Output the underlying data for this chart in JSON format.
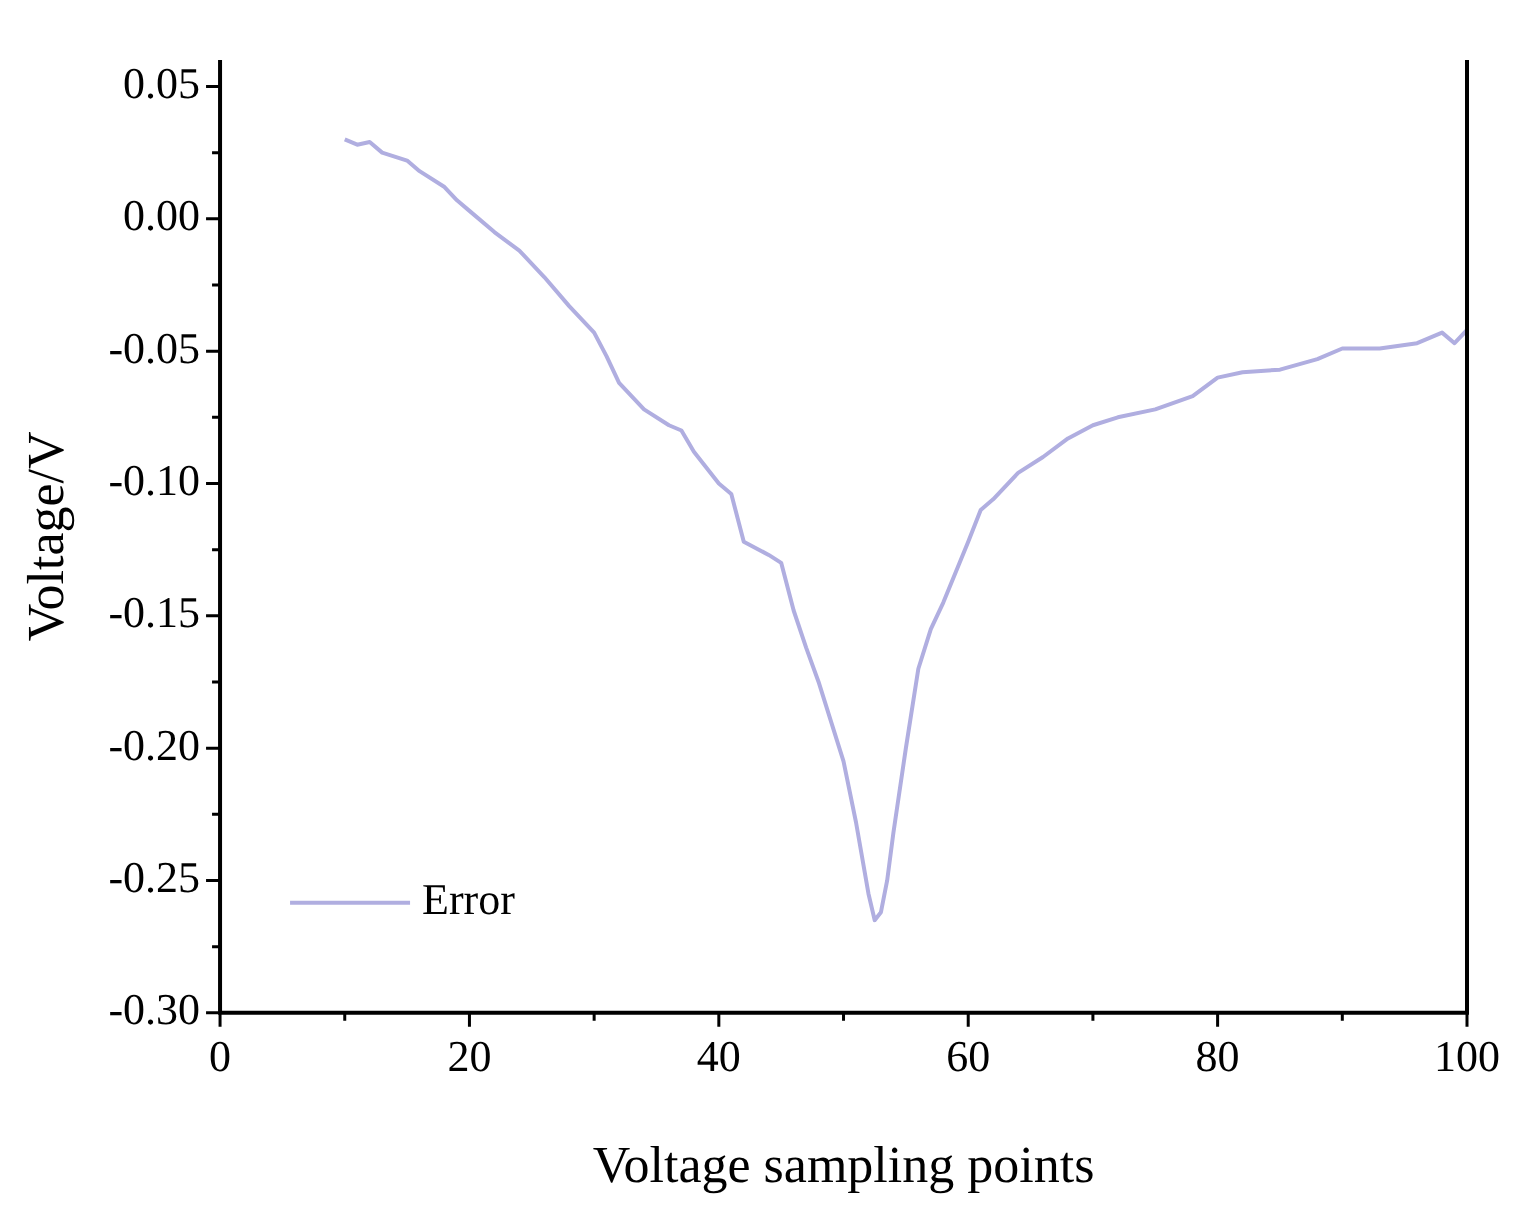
{
  "chart_data": {
    "type": "line",
    "xlabel": "Voltage sampling points",
    "ylabel": "Voltage/V",
    "xlim": [
      0,
      100
    ],
    "xticks": [
      0,
      20,
      40,
      60,
      80,
      100
    ],
    "ylim": [
      -0.3,
      0.06
    ],
    "yticks": [
      {
        "value": -0.3,
        "label": "-0.30"
      },
      {
        "value": -0.25,
        "label": "-0.25"
      },
      {
        "value": -0.2,
        "label": "-0.20"
      },
      {
        "value": -0.15,
        "label": "-0.15"
      },
      {
        "value": -0.1,
        "label": "-0.10"
      },
      {
        "value": -0.05,
        "label": "-0.05"
      },
      {
        "value": 0,
        "label": "0.00"
      },
      {
        "value": 0.05,
        "label": "0.05"
      }
    ],
    "grid": false,
    "legend": "bottom left",
    "marker": "none",
    "line_style": "solid",
    "series": [
      {
        "name": "Error",
        "color": "#b0aee0",
        "x": [
          10,
          11,
          12,
          13,
          15,
          16,
          18,
          19,
          20,
          22,
          24,
          26,
          28,
          30,
          31,
          32,
          34,
          36,
          37,
          38,
          40,
          41,
          42,
          44,
          45,
          46,
          47,
          48,
          49,
          50,
          51,
          52,
          52.5,
          53,
          53.5,
          54,
          55,
          56,
          57,
          58,
          60,
          61,
          62,
          64,
          66,
          68,
          70,
          72,
          75,
          78,
          80,
          82,
          85,
          88,
          90,
          93,
          96,
          98,
          99,
          100
        ],
        "values": [
          0.03,
          0.028,
          0.029,
          0.025,
          0.022,
          0.018,
          0.012,
          0.007,
          0.003,
          -0.005,
          -0.012,
          -0.022,
          -0.033,
          -0.043,
          -0.052,
          -0.062,
          -0.072,
          -0.078,
          -0.08,
          -0.088,
          -0.1,
          -0.104,
          -0.122,
          -0.127,
          -0.13,
          -0.148,
          -0.162,
          -0.175,
          -0.19,
          -0.205,
          -0.228,
          -0.255,
          -0.265,
          -0.262,
          -0.25,
          -0.232,
          -0.2,
          -0.17,
          -0.155,
          -0.145,
          -0.122,
          -0.11,
          -0.106,
          -0.096,
          -0.09,
          -0.083,
          -0.078,
          -0.075,
          -0.072,
          -0.067,
          -0.06,
          -0.058,
          -0.057,
          -0.053,
          -0.049,
          -0.049,
          -0.047,
          -0.043,
          -0.047,
          -0.042
        ]
      }
    ]
  }
}
